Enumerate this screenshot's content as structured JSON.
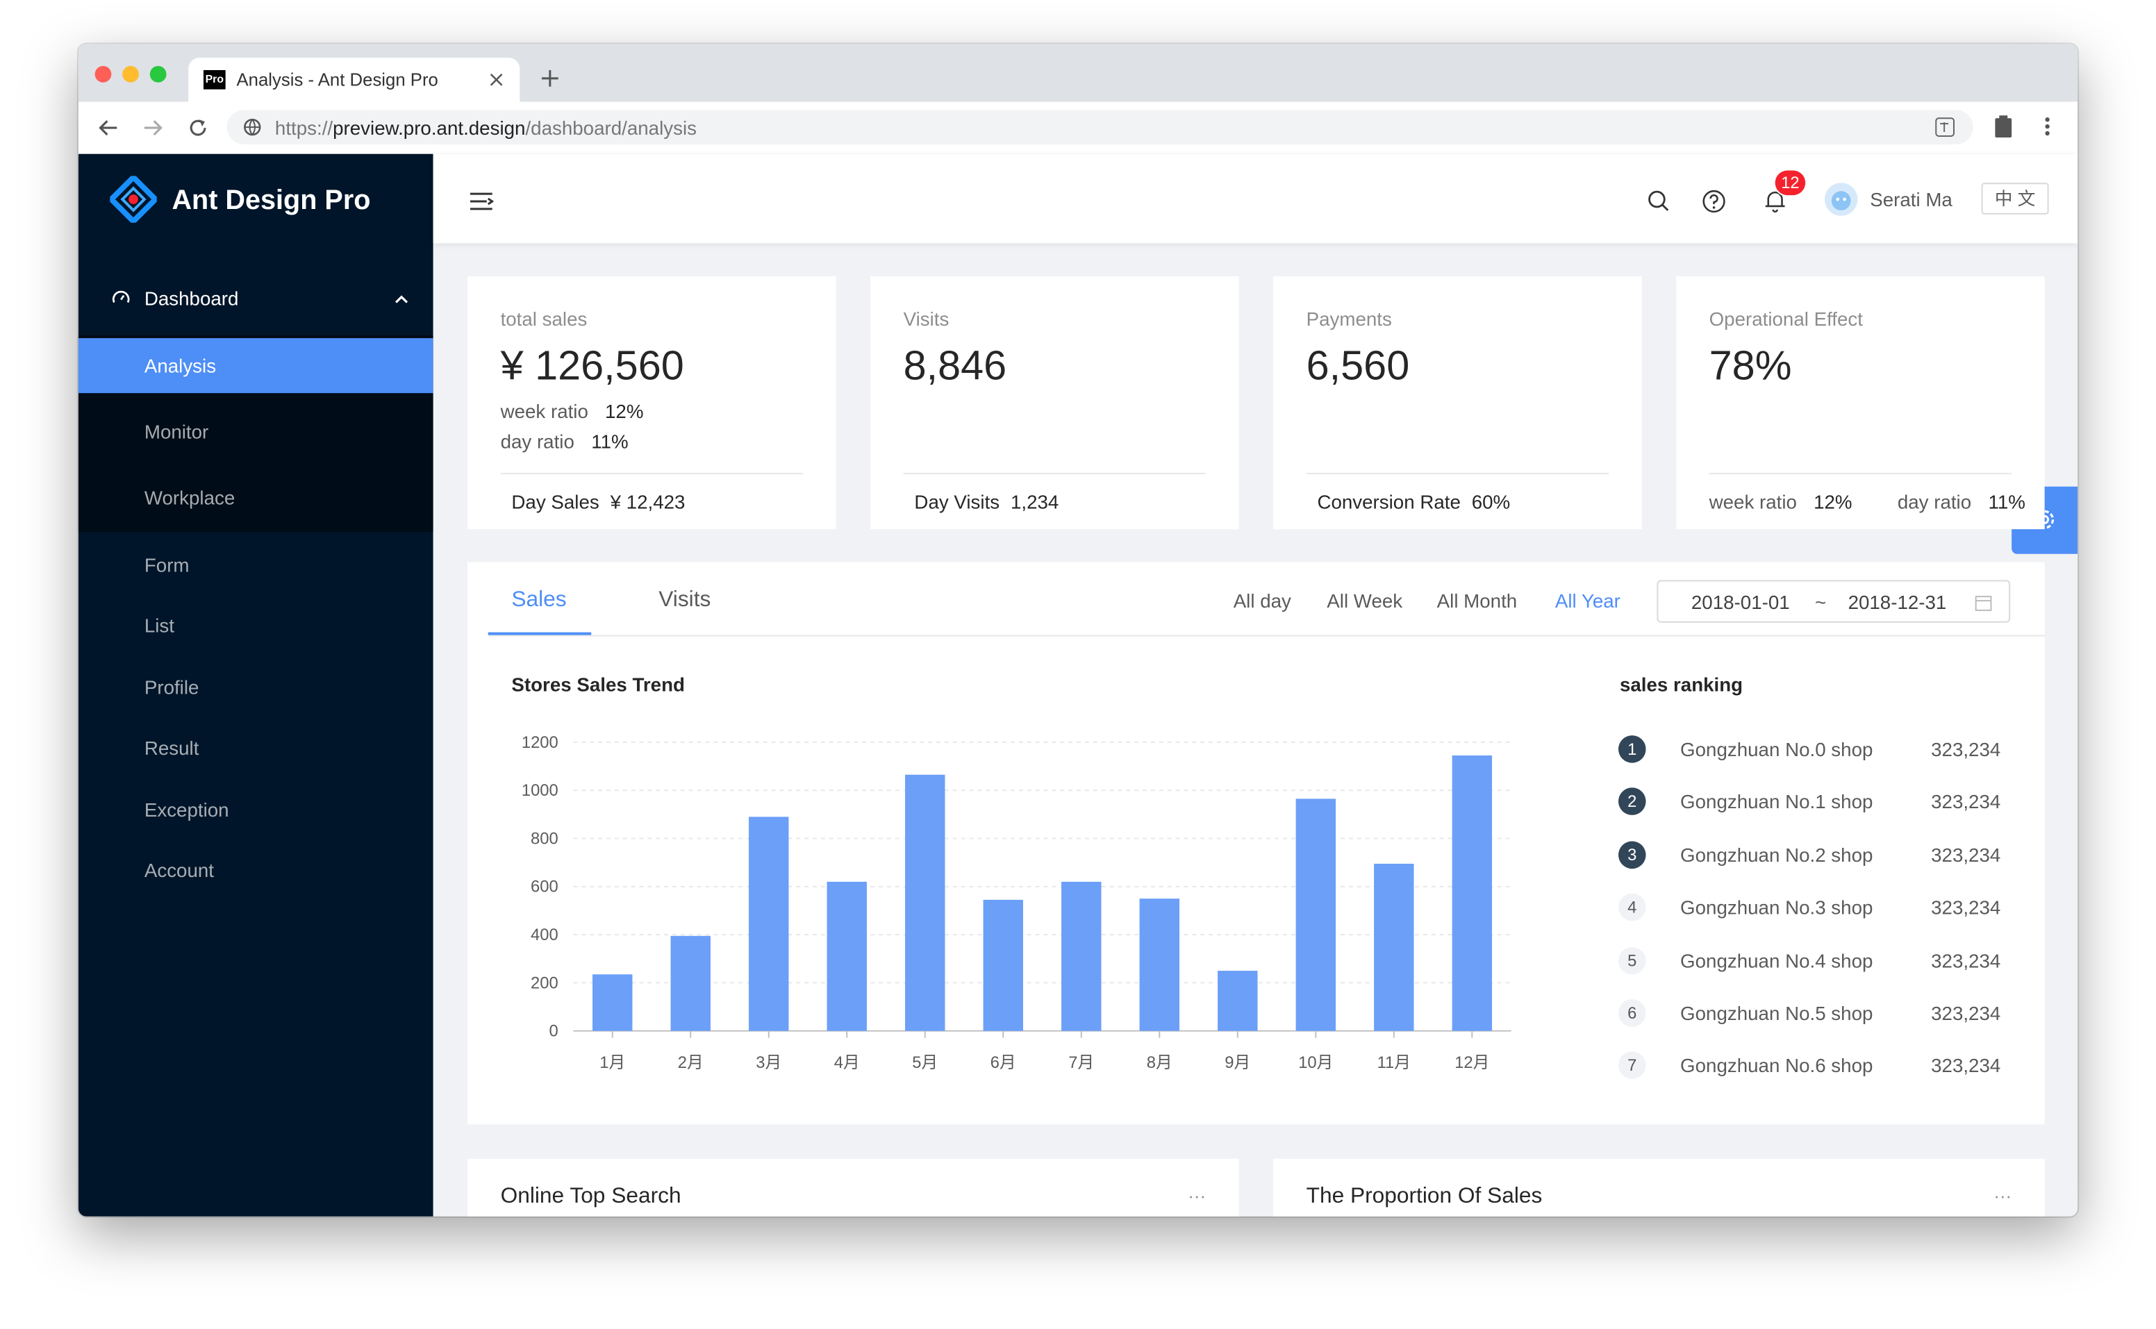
{
  "browser": {
    "tab_title": "Analysis - Ant Design Pro",
    "favicon": "Pro",
    "url_scheme": "https://",
    "url_host": "preview.pro.ant.design",
    "url_path": "/dashboard/analysis"
  },
  "sidebar": {
    "brand": "Ant Design Pro",
    "group": "Dashboard",
    "submenu": [
      "Analysis",
      "Monitor",
      "Workplace"
    ],
    "menu": [
      "Form",
      "List",
      "Profile",
      "Result",
      "Exception",
      "Account"
    ]
  },
  "header": {
    "notification_count": 12,
    "user": "Serati Ma",
    "language": "中 文"
  },
  "cards": [
    {
      "title": "total sales",
      "value": "¥ 126,560",
      "week_label": "week ratio",
      "week_value": "12%",
      "day_label": "day ratio",
      "day_value": "11%",
      "footer_label": "Day Sales",
      "footer_value": "¥ 12,423"
    },
    {
      "title": "Visits",
      "value": "8,846",
      "footer_label": "Day Visits",
      "footer_value": "1,234"
    },
    {
      "title": "Payments",
      "value": "6,560",
      "footer_label": "Conversion Rate",
      "footer_value": "60%"
    },
    {
      "title": "Operational Effect",
      "value": "78%",
      "week_label": "week ratio",
      "week_value": "12%",
      "day_label": "day ratio",
      "day_value": "11%"
    }
  ],
  "panel": {
    "tabs": [
      "Sales",
      "Visits"
    ],
    "ranges": [
      "All day",
      "All Week",
      "All Month",
      "All Year"
    ],
    "date_start": "2018-01-01",
    "date_sep": "~",
    "date_end": "2018-12-31",
    "ranking_title": "sales ranking",
    "ranking": [
      {
        "rank": 1,
        "name": "Gongzhuan No.0 shop",
        "value": "323,234"
      },
      {
        "rank": 2,
        "name": "Gongzhuan No.1 shop",
        "value": "323,234"
      },
      {
        "rank": 3,
        "name": "Gongzhuan No.2 shop",
        "value": "323,234"
      },
      {
        "rank": 4,
        "name": "Gongzhuan No.3 shop",
        "value": "323,234"
      },
      {
        "rank": 5,
        "name": "Gongzhuan No.4 shop",
        "value": "323,234"
      },
      {
        "rank": 6,
        "name": "Gongzhuan No.5 shop",
        "value": "323,234"
      },
      {
        "rank": 7,
        "name": "Gongzhuan No.6 shop",
        "value": "323,234"
      }
    ]
  },
  "chart_data": {
    "type": "bar",
    "title": "Stores Sales Trend",
    "categories": [
      "1月",
      "2月",
      "3月",
      "4月",
      "5月",
      "6月",
      "7月",
      "8月",
      "9月",
      "10月",
      "11月",
      "12月"
    ],
    "values": [
      235,
      395,
      890,
      620,
      1065,
      545,
      620,
      550,
      250,
      965,
      695,
      1145
    ],
    "color": "#6b9ff8",
    "ylim": [
      0,
      1200
    ],
    "yticks": [
      0,
      200,
      400,
      600,
      800,
      1000,
      1200
    ],
    "grid": true
  },
  "bottom": {
    "left_title": "Online Top Search",
    "right_title": "The Proportion Of Sales",
    "more": "···"
  }
}
